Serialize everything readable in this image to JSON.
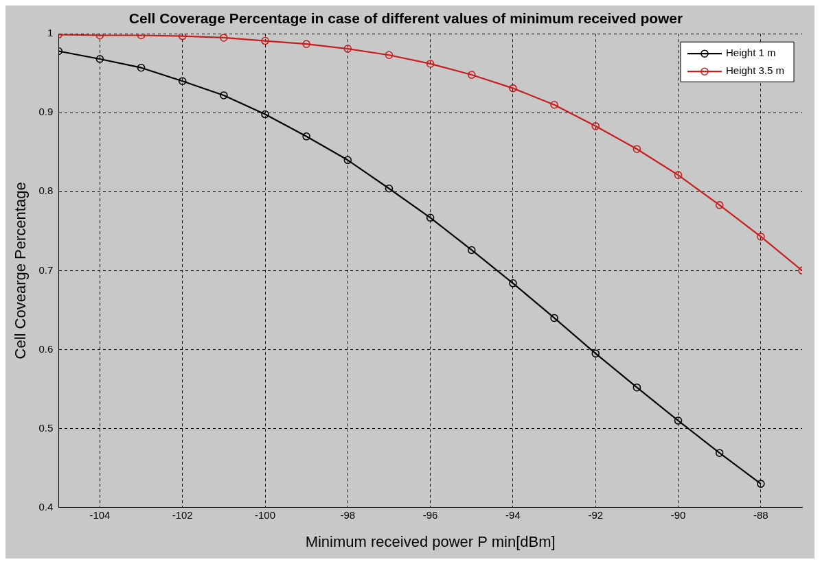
{
  "chart_data": {
    "type": "line",
    "title": "Cell Coverage Percentage in case of different values of minimum received power",
    "xlabel": "Minimum received power P min[dBm]",
    "ylabel": "Cell Covearge Percentage",
    "x": [
      -105,
      -104,
      -103,
      -102,
      -101,
      -100,
      -99,
      -98,
      -97,
      -96,
      -95,
      -94,
      -93,
      -92,
      -91,
      -90,
      -89,
      -88,
      -87
    ],
    "series": [
      {
        "name": "Height 1 m",
        "color": "#000000",
        "values": [
          0.978,
          0.968,
          0.957,
          0.94,
          0.922,
          0.898,
          0.87,
          0.84,
          0.804,
          0.767,
          0.726,
          0.684,
          0.64,
          0.595,
          0.552,
          0.51,
          0.469,
          0.43,
          null
        ]
      },
      {
        "name": "Height 3.5 m",
        "color": "#c81e1e",
        "values": [
          0.999,
          0.998,
          0.998,
          0.997,
          0.995,
          0.991,
          0.987,
          0.981,
          0.973,
          0.962,
          0.948,
          0.931,
          0.91,
          0.883,
          0.854,
          0.821,
          0.783,
          0.743,
          0.7
        ]
      }
    ],
    "xlim": [
      -105,
      -87
    ],
    "xticks": [
      -104,
      -102,
      -100,
      -98,
      -96,
      -94,
      -92,
      -90,
      -88
    ],
    "ylim": [
      0.4,
      1
    ],
    "yticks": [
      0.4,
      0.5,
      0.6,
      0.7,
      0.8,
      0.9,
      1
    ],
    "grid": true,
    "legend": "top right",
    "marker": "circle",
    "line_style": "solid"
  }
}
